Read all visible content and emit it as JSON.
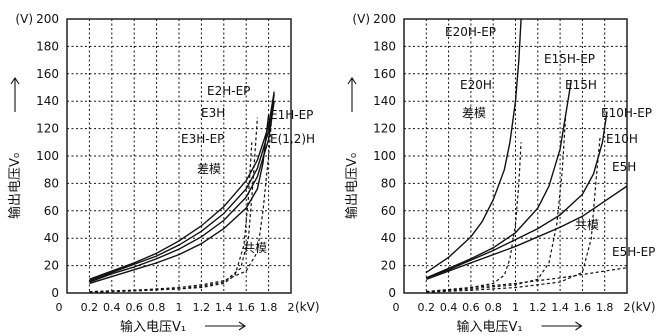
{
  "chart_data": [
    {
      "type": "line",
      "ylabel": "输出电压V₀",
      "xlabel": "输入电压V₁",
      "ylabel_unit": "(V)",
      "xlabel_unit": "(kV)",
      "ylim": [
        0,
        200
      ],
      "xlim": [
        0,
        2.0
      ],
      "y_ticks": [
        "0",
        "20",
        "40",
        "60",
        "80",
        "100",
        "120",
        "140",
        "160",
        "180",
        "200"
      ],
      "x_ticks": [
        "0",
        "0.2",
        "0.4",
        "0.6",
        "0.8",
        "1",
        "1.2",
        "1.4",
        "1.6",
        "1.8",
        "2"
      ],
      "grid": true,
      "annotations": [
        "E2H-EP",
        "E3H",
        "E3H-EP",
        "E1H-EP",
        "E(1,2)H",
        "差模",
        "共模"
      ],
      "series": [
        {
          "name": "E2H-EP",
          "mode": "差模",
          "style": "solid",
          "points": [
            [
              0.2,
              10
            ],
            [
              0.4,
              16
            ],
            [
              0.6,
              22
            ],
            [
              0.8,
              29
            ],
            [
              1.0,
              38
            ],
            [
              1.2,
              49
            ],
            [
              1.4,
              63
            ],
            [
              1.6,
              82
            ],
            [
              1.7,
              97
            ],
            [
              1.8,
              122
            ],
            [
              1.85,
              147
            ]
          ]
        },
        {
          "name": "E3H",
          "mode": "差模",
          "style": "solid",
          "points": [
            [
              0.2,
              9
            ],
            [
              0.4,
              15
            ],
            [
              0.6,
              21
            ],
            [
              0.8,
              27
            ],
            [
              1.0,
              35
            ],
            [
              1.2,
              45
            ],
            [
              1.4,
              58
            ],
            [
              1.6,
              76
            ],
            [
              1.7,
              91
            ],
            [
              1.8,
              118
            ],
            [
              1.85,
              145
            ]
          ]
        },
        {
          "name": "E3H-EP",
          "mode": "差模",
          "style": "solid",
          "points": [
            [
              0.2,
              8
            ],
            [
              0.4,
              14
            ],
            [
              0.6,
              19
            ],
            [
              0.8,
              25
            ],
            [
              1.0,
              32
            ],
            [
              1.2,
              41
            ],
            [
              1.4,
              53
            ],
            [
              1.6,
              70
            ],
            [
              1.7,
              85
            ],
            [
              1.8,
              112
            ],
            [
              1.85,
              140
            ]
          ]
        },
        {
          "name": "E(1,2)H",
          "mode": "差模",
          "style": "solid",
          "points": [
            [
              0.2,
              7
            ],
            [
              0.4,
              12
            ],
            [
              0.6,
              17
            ],
            [
              0.8,
              22
            ],
            [
              1.0,
              28
            ],
            [
              1.2,
              36
            ],
            [
              1.4,
              47
            ],
            [
              1.6,
              62
            ],
            [
              1.7,
              76
            ],
            [
              1.75,
              95
            ],
            [
              1.8,
              130
            ]
          ]
        },
        {
          "name": "",
          "mode": "共模",
          "style": "dashed",
          "points": [
            [
              0.2,
              1
            ],
            [
              0.6,
              2
            ],
            [
              1.0,
              4
            ],
            [
              1.2,
              6
            ],
            [
              1.4,
              9
            ],
            [
              1.6,
              16
            ],
            [
              1.7,
              30
            ],
            [
              1.75,
              60
            ],
            [
              1.8,
              100
            ],
            [
              1.84,
              140
            ]
          ]
        },
        {
          "name": "",
          "mode": "共模",
          "style": "dashed",
          "points": [
            [
              0.2,
              1
            ],
            [
              0.6,
              2
            ],
            [
              1.0,
              3
            ],
            [
              1.2,
              5
            ],
            [
              1.4,
              8
            ],
            [
              1.55,
              18
            ],
            [
              1.62,
              40
            ],
            [
              1.66,
              80
            ],
            [
              1.7,
              128
            ]
          ]
        },
        {
          "name": "",
          "mode": "共模",
          "style": "dashed",
          "points": [
            [
              0.2,
              0.5
            ],
            [
              0.6,
              1.5
            ],
            [
              1.0,
              3
            ],
            [
              1.2,
              4
            ],
            [
              1.4,
              7
            ],
            [
              1.5,
              13
            ],
            [
              1.58,
              35
            ],
            [
              1.62,
              70
            ],
            [
              1.65,
              110
            ]
          ]
        }
      ]
    },
    {
      "type": "line",
      "ylabel": "输出电压V₀",
      "xlabel": "输入电压V₁",
      "ylabel_unit": "(V)",
      "xlabel_unit": "(kV)",
      "ylim": [
        0,
        200
      ],
      "xlim": [
        0,
        2.0
      ],
      "y_ticks": [
        "0",
        "20",
        "40",
        "60",
        "80",
        "100",
        "120",
        "140",
        "160",
        "180",
        "200"
      ],
      "x_ticks": [
        "0",
        "0.2",
        "0.4",
        "0.6",
        "0.8",
        "1",
        "1.2",
        "1.4",
        "1.6",
        "1.8",
        "2"
      ],
      "grid": true,
      "annotations": [
        "E20H-EP",
        "E20H",
        "差模",
        "E15H-EP",
        "E15H",
        "E10H-EP",
        "E10H",
        "E5H",
        "共模",
        "E5H-EP"
      ],
      "series": [
        {
          "name": "E20H-EP",
          "mode": "差模",
          "style": "solid",
          "points": [
            [
              0.2,
              15
            ],
            [
              0.4,
              26
            ],
            [
              0.6,
              41
            ],
            [
              0.7,
              52
            ],
            [
              0.8,
              68
            ],
            [
              0.9,
              90
            ],
            [
              0.95,
              110
            ],
            [
              1.0,
              140
            ],
            [
              1.03,
              170
            ],
            [
              1.05,
              200
            ]
          ]
        },
        {
          "name": "E20H",
          "mode": "差模",
          "style": "solid",
          "points": [
            [
              0.2,
              11
            ],
            [
              0.4,
              18
            ],
            [
              0.6,
              25
            ],
            [
              0.8,
              33
            ],
            [
              1.0,
              44
            ],
            [
              1.2,
              62
            ],
            [
              1.3,
              78
            ],
            [
              1.4,
              105
            ],
            [
              1.45,
              130
            ],
            [
              1.5,
              155
            ]
          ]
        },
        {
          "name": "E15H",
          "mode": "差模",
          "style": "solid",
          "points": [
            [
              0.2,
              11
            ],
            [
              0.4,
              17
            ],
            [
              0.6,
              24
            ],
            [
              0.8,
              31
            ],
            [
              1.0,
              39
            ],
            [
              1.2,
              47
            ],
            [
              1.4,
              57
            ],
            [
              1.6,
              72
            ],
            [
              1.7,
              87
            ],
            [
              1.78,
              110
            ],
            [
              1.82,
              132
            ]
          ]
        },
        {
          "name": "E5H",
          "mode": "差模",
          "style": "solid",
          "points": [
            [
              0.2,
              10
            ],
            [
              0.6,
              22
            ],
            [
              1.0,
              34
            ],
            [
              1.4,
              48
            ],
            [
              1.6,
              56
            ],
            [
              1.8,
              67
            ],
            [
              2.0,
              78
            ]
          ]
        },
        {
          "name": "E5H-EP",
          "mode": "共模",
          "style": "dashed",
          "points": [
            [
              0.2,
              1
            ],
            [
              0.6,
              4
            ],
            [
              1.0,
              7
            ],
            [
              1.4,
              11
            ],
            [
              1.8,
              16
            ],
            [
              2.2,
              21
            ]
          ]
        },
        {
          "name": "",
          "mode": "共模",
          "style": "dashed",
          "points": [
            [
              0.2,
              1
            ],
            [
              0.6,
              4
            ],
            [
              0.8,
              7
            ],
            [
              0.9,
              13
            ],
            [
              0.95,
              25
            ],
            [
              1.0,
              50
            ],
            [
              1.03,
              80
            ],
            [
              1.05,
              110
            ]
          ]
        },
        {
          "name": "",
          "mode": "共模",
          "style": "dashed",
          "points": [
            [
              0.2,
              1
            ],
            [
              0.6,
              3
            ],
            [
              1.0,
              6
            ],
            [
              1.2,
              10
            ],
            [
              1.3,
              22
            ],
            [
              1.37,
              50
            ],
            [
              1.42,
              90
            ],
            [
              1.45,
              130
            ]
          ]
        },
        {
          "name": "",
          "mode": "共模",
          "style": "dashed",
          "points": [
            [
              0.2,
              0.5
            ],
            [
              0.6,
              2
            ],
            [
              1.0,
              4
            ],
            [
              1.4,
              8
            ],
            [
              1.6,
              15
            ],
            [
              1.68,
              40
            ],
            [
              1.72,
              80
            ],
            [
              1.76,
              115
            ]
          ]
        }
      ]
    }
  ]
}
